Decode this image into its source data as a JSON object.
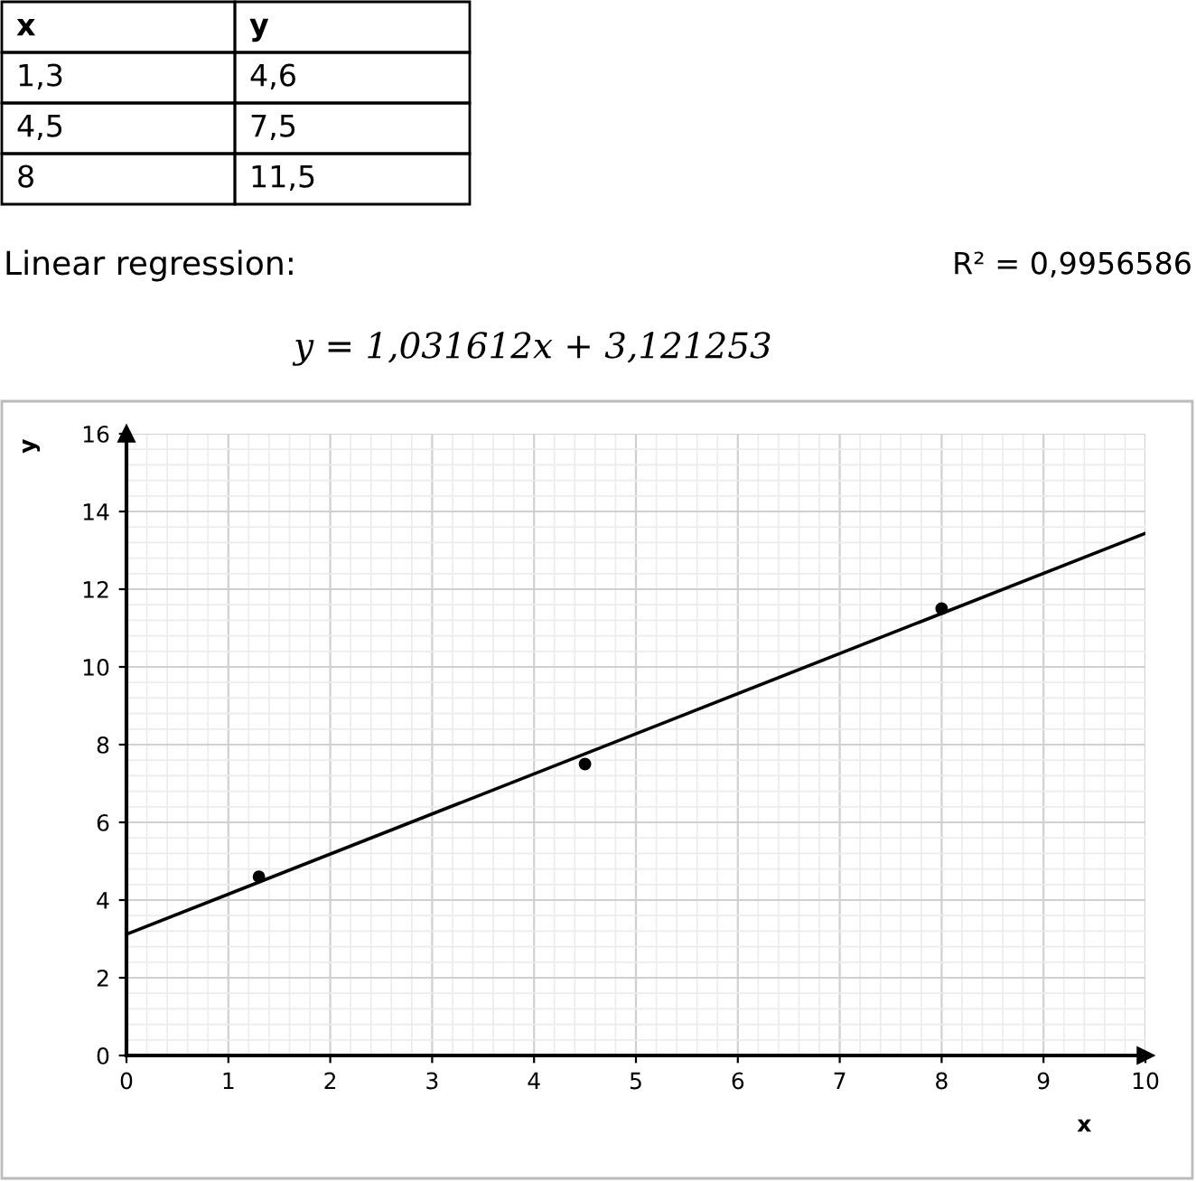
{
  "chart_data": {
    "type": "scatter",
    "xlabel": "x",
    "ylabel": "y",
    "annotations": [
      "x",
      "y",
      "1,3",
      "4,6",
      "4,5",
      "7,5",
      "8",
      "11,5",
      "Linear regression:",
      "R² = 0,9956586",
      "y = 1,031612x + 3,121253"
    ],
    "series": [
      {
        "color": "#000000",
        "marker": "circle",
        "x": [
          1.3,
          4.5,
          8
        ],
        "values": [
          4.6,
          7.5,
          11.5
        ]
      },
      {
        "type": "line",
        "color": "#000000",
        "marker": "none",
        "line_style": "solid",
        "x": [
          0,
          10
        ],
        "values": [
          3.12,
          13.44
        ]
      }
    ],
    "xlim": [
      0,
      10
    ],
    "xticks": [
      0,
      1,
      2,
      3,
      4,
      5,
      6,
      7,
      8,
      9,
      10
    ],
    "ylim": [
      0,
      16
    ],
    "yticks": [
      0,
      2,
      4,
      6,
      8,
      10,
      12,
      14,
      16
    ],
    "grid": true,
    "legend": false
  }
}
